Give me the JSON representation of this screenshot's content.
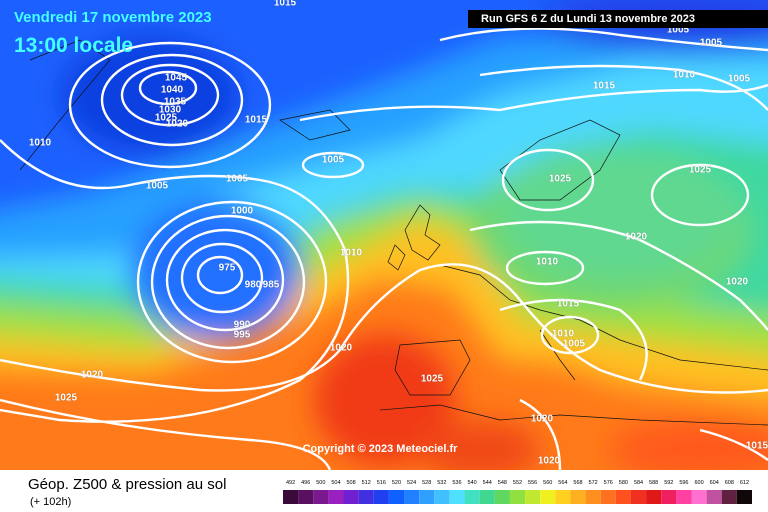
{
  "header": {
    "date": "Vendredi 17 novembre 2023",
    "time": "13:00 locale",
    "run": "Run GFS 6 Z du Lundi 13 novembre 2023"
  },
  "copyright": "Copyright © 2023 Meteociel.fr",
  "footer": {
    "title": "Géop. Z500 & pression au sol",
    "lead": "(+ 102h)"
  },
  "isobar_labels": [
    1015,
    1045,
    1040,
    1035,
    1030,
    1025,
    1020,
    1015,
    1010,
    1005,
    1005,
    1000,
    975,
    980,
    985,
    990,
    995,
    1010,
    1020,
    1020,
    1025,
    1005,
    1015,
    1010,
    1005,
    1005,
    1005,
    1025,
    1025,
    1020,
    1010,
    1015,
    1010,
    1005,
    1020,
    1025,
    1020,
    1020,
    1015
  ],
  "legend": {
    "values": [
      492,
      496,
      500,
      504,
      508,
      512,
      516,
      520,
      524,
      528,
      532,
      536,
      540,
      544,
      548,
      552,
      556,
      560,
      564,
      568,
      572,
      576,
      580,
      584,
      588,
      592,
      596,
      600,
      604,
      608,
      612
    ],
    "colors": [
      "#3a0a3a",
      "#5a1060",
      "#7a1890",
      "#9a20c0",
      "#7020d0",
      "#4030e0",
      "#2040f0",
      "#1060ff",
      "#2080ff",
      "#30a0ff",
      "#40c0ff",
      "#50e0ff",
      "#40e0c0",
      "#40d890",
      "#60d860",
      "#90e040",
      "#c0e830",
      "#f0f020",
      "#ffd020",
      "#ffb020",
      "#ff9020",
      "#ff7020",
      "#ff5020",
      "#f03020",
      "#e01818",
      "#f02060",
      "#ff40a0",
      "#ff70d0",
      "#c050a0",
      "#602040",
      "#100808"
    ]
  }
}
